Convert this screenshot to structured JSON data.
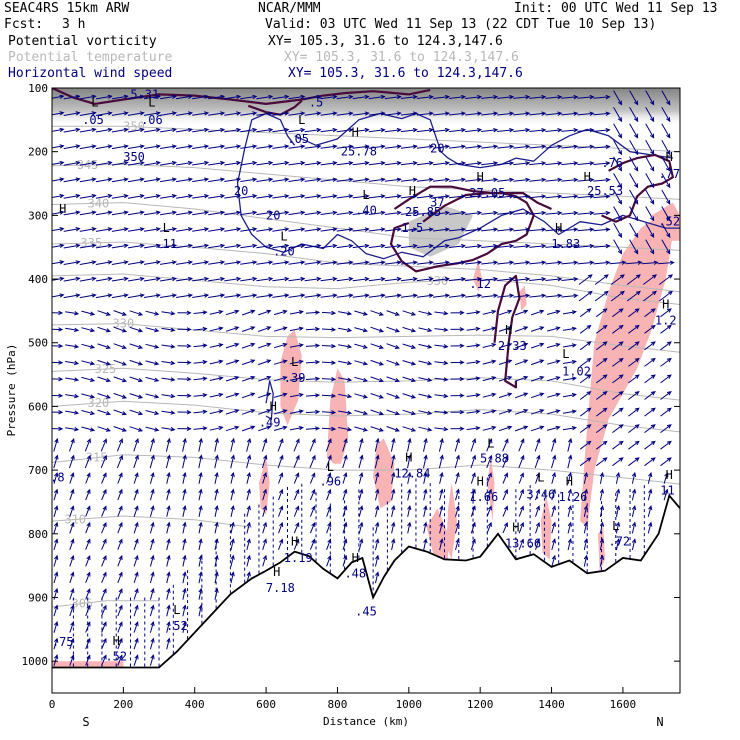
{
  "header": {
    "model": "SEAC4RS 15km ARW",
    "center": "NCAR/MMM",
    "init": "Init: 00 UTC Wed 11 Sep 13",
    "fcst_label": "Fcst:",
    "fcst_value": "3 h",
    "valid": "Valid: 03 UTC Wed 11 Sep 13 (22 CDT Tue 10 Sep 13)"
  },
  "legend": [
    {
      "field": "Potential vorticity",
      "xy": "XY= 105.3, 31.6 to 124.3,147.6",
      "color": "#000000"
    },
    {
      "field": "Potential temperature",
      "xy": "XY= 105.3, 31.6 to 124.3,147.6",
      "color": "#b8b8b8"
    },
    {
      "field": "Horizontal wind speed",
      "xy": "XY= 105.3, 31.6 to 124.3,147.6",
      "color": "#000080"
    }
  ],
  "colors": {
    "wind_arrow": "#000080",
    "pv_contour": "#1e1e8c",
    "theta_contour": "#b8b8b8",
    "pv_thick": "#4a0a3c",
    "pink_fill": "#f8b4b4",
    "strat_grey": "#9a9a9a",
    "terrain": "#000000"
  },
  "chart_data": {
    "type": "cross-section",
    "xlabel": "Distance (km)",
    "ylabel": "Pressure (hPa)",
    "xlim": [
      0,
      1760
    ],
    "ylim": [
      1050,
      100
    ],
    "x_ticks": [
      0,
      200,
      400,
      600,
      800,
      1000,
      1200,
      1400,
      1600
    ],
    "y_ticks": [
      100,
      200,
      300,
      400,
      500,
      600,
      700,
      800,
      900,
      1000
    ],
    "x_end_labels": {
      "left": "S",
      "right": "N"
    },
    "terrain": [
      [
        0,
        1010
      ],
      [
        100,
        1010
      ],
      [
        200,
        1010
      ],
      [
        300,
        1010
      ],
      [
        350,
        985
      ],
      [
        400,
        955
      ],
      [
        450,
        925
      ],
      [
        500,
        895
      ],
      [
        560,
        870
      ],
      [
        600,
        858
      ],
      [
        640,
        845
      ],
      [
        680,
        828
      ],
      [
        720,
        835
      ],
      [
        760,
        855
      ],
      [
        800,
        870
      ],
      [
        840,
        845
      ],
      [
        870,
        838
      ],
      [
        900,
        900
      ],
      [
        930,
        868
      ],
      [
        960,
        842
      ],
      [
        1000,
        820
      ],
      [
        1050,
        828
      ],
      [
        1100,
        840
      ],
      [
        1160,
        842
      ],
      [
        1200,
        836
      ],
      [
        1250,
        800
      ],
      [
        1300,
        840
      ],
      [
        1350,
        832
      ],
      [
        1400,
        852
      ],
      [
        1450,
        842
      ],
      [
        1500,
        862
      ],
      [
        1550,
        858
      ],
      [
        1600,
        838
      ],
      [
        1650,
        842
      ],
      [
        1700,
        800
      ],
      [
        1730,
        740
      ],
      [
        1760,
        760
      ]
    ],
    "theta_isentropes": [
      {
        "label": "350",
        "x_label": 230,
        "p": [
          [
            0,
            160
          ],
          [
            200,
            160
          ],
          [
            400,
            165
          ],
          [
            600,
            170
          ],
          [
            800,
            175
          ],
          [
            1000,
            180
          ],
          [
            1200,
            185
          ],
          [
            1400,
            190
          ],
          [
            1600,
            195
          ],
          [
            1760,
            200
          ]
        ]
      },
      {
        "label": "345",
        "x_label": 100,
        "p": [
          [
            0,
            222
          ],
          [
            200,
            220
          ],
          [
            400,
            225
          ],
          [
            600,
            235
          ],
          [
            800,
            245
          ],
          [
            1000,
            255
          ],
          [
            1200,
            260
          ],
          [
            1400,
            265
          ],
          [
            1600,
            270
          ],
          [
            1760,
            275
          ]
        ]
      },
      {
        "label": "340",
        "x_label": 130,
        "p": [
          [
            0,
            283
          ],
          [
            200,
            280
          ],
          [
            400,
            290
          ],
          [
            600,
            305
          ],
          [
            800,
            320
          ],
          [
            1000,
            335
          ],
          [
            1200,
            340
          ],
          [
            1400,
            345
          ],
          [
            1600,
            350
          ],
          [
            1760,
            355
          ]
        ]
      },
      {
        "label": "335",
        "x_label": 110,
        "p": [
          [
            0,
            345
          ],
          [
            200,
            342
          ],
          [
            400,
            350
          ],
          [
            600,
            360
          ],
          [
            800,
            375
          ],
          [
            1000,
            380
          ],
          [
            1200,
            385
          ],
          [
            1400,
            395
          ],
          [
            1600,
            410
          ],
          [
            1760,
            420
          ]
        ]
      },
      {
        "label": "330",
        "x_label": 1080,
        "p": [
          [
            0,
            395
          ],
          [
            200,
            392
          ],
          [
            400,
            402
          ],
          [
            600,
            412
          ],
          [
            800,
            415
          ],
          [
            1000,
            405
          ],
          [
            1200,
            400
          ],
          [
            1400,
            410
          ],
          [
            1600,
            430
          ],
          [
            1760,
            440
          ]
        ]
      },
      {
        "label": "330",
        "x_label": 200,
        "p": [
          [
            0,
            472
          ],
          [
            200,
            470
          ],
          [
            400,
            480
          ],
          [
            600,
            490
          ],
          [
            800,
            492
          ],
          [
            1000,
            490
          ],
          [
            1200,
            488
          ],
          [
            1400,
            490
          ],
          [
            1600,
            505
          ],
          [
            1760,
            515
          ]
        ]
      },
      {
        "label": "325",
        "x_label": 150,
        "p": [
          [
            0,
            545
          ],
          [
            200,
            540
          ],
          [
            400,
            548
          ],
          [
            600,
            558
          ],
          [
            800,
            562
          ],
          [
            1000,
            560
          ],
          [
            1200,
            555
          ],
          [
            1400,
            560
          ],
          [
            1600,
            580
          ],
          [
            1760,
            590
          ]
        ]
      },
      {
        "label": "320",
        "x_label": 130,
        "p": [
          [
            0,
            600
          ],
          [
            200,
            592
          ],
          [
            400,
            598
          ],
          [
            600,
            610
          ],
          [
            800,
            615
          ],
          [
            1000,
            612
          ],
          [
            1200,
            605
          ],
          [
            1400,
            612
          ],
          [
            1600,
            630
          ],
          [
            1760,
            640
          ]
        ]
      },
      {
        "label": "315",
        "x_label": 125,
        "p": [
          [
            0,
            688
          ],
          [
            200,
            676
          ],
          [
            400,
            680
          ],
          [
            600,
            692
          ],
          [
            800,
            700
          ],
          [
            1000,
            700
          ],
          [
            1200,
            692
          ],
          [
            1400,
            700
          ],
          [
            1600,
            712
          ],
          [
            1760,
            722
          ]
        ]
      },
      {
        "label": "310",
        "x_label": 65,
        "p": [
          [
            0,
            780
          ],
          [
            200,
            772
          ],
          [
            400,
            778
          ],
          [
            560,
            790
          ]
        ]
      },
      {
        "label": "305",
        "x_label": 85,
        "p": [
          [
            0,
            915
          ],
          [
            150,
            905
          ],
          [
            300,
            905
          ]
        ]
      }
    ],
    "pv_labels": [
      {
        "text": "5.31",
        "x": 260,
        "p": 110
      },
      {
        "text": "L",
        "x": 120,
        "p": 123
      },
      {
        "text": ".05",
        "x": 115,
        "p": 150
      },
      {
        "text": "L",
        "x": 280,
        "p": 123
      },
      {
        "text": ".06",
        "x": 280,
        "p": 150
      },
      {
        "text": ".5",
        "x": 740,
        "p": 123
      },
      {
        "text": "L",
        "x": 700,
        "p": 150
      },
      {
        "text": ".05",
        "x": 690,
        "p": 180
      },
      {
        "text": "H",
        "x": 850,
        "p": 170
      },
      {
        "text": "25.78",
        "x": 860,
        "p": 200
      },
      {
        "text": "20",
        "x": 1080,
        "p": 195
      },
      {
        "text": "20",
        "x": 530,
        "p": 262
      },
      {
        "text": "350",
        "x": 230,
        "p": 208
      },
      {
        "text": "L",
        "x": 880,
        "p": 268
      },
      {
        "text": ".40",
        "x": 880,
        "p": 292
      },
      {
        "text": "20",
        "x": 620,
        "p": 300
      },
      {
        "text": "L",
        "x": 320,
        "p": 320
      },
      {
        "text": ".11",
        "x": 320,
        "p": 345
      },
      {
        "text": "L",
        "x": 650,
        "p": 333
      },
      {
        "text": ".20",
        "x": 650,
        "p": 357
      },
      {
        "text": "H",
        "x": 1010,
        "p": 262
      },
      {
        "text": "37",
        "x": 1080,
        "p": 280
      },
      {
        "text": "25.85",
        "x": 1040,
        "p": 295
      },
      {
        "text": "1.5",
        "x": 1010,
        "p": 320
      },
      {
        "text": "H",
        "x": 1200,
        "p": 240
      },
      {
        "text": "27.05",
        "x": 1220,
        "p": 265
      },
      {
        "text": "H",
        "x": 1500,
        "p": 240
      },
      {
        "text": "25.53",
        "x": 1550,
        "p": 262
      },
      {
        "text": "H",
        "x": 1420,
        "p": 320
      },
      {
        "text": "1.83",
        "x": 1440,
        "p": 345
      },
      {
        "text": "H",
        "x": 1280,
        "p": 480
      },
      {
        "text": "2.33",
        "x": 1290,
        "p": 505
      },
      {
        "text": ".12",
        "x": 1200,
        "p": 408
      },
      {
        "text": "H",
        "x": 1720,
        "p": 440
      },
      {
        "text": "1.2",
        "x": 1720,
        "p": 465
      },
      {
        "text": "L",
        "x": 1440,
        "p": 518
      },
      {
        "text": "1.02",
        "x": 1470,
        "p": 545
      },
      {
        "text": "L",
        "x": 680,
        "p": 530
      },
      {
        "text": ".39",
        "x": 680,
        "p": 555
      },
      {
        "text": "H",
        "x": 620,
        "p": 600
      },
      {
        "text": ".49",
        "x": 610,
        "p": 625
      },
      {
        "text": "L",
        "x": 1230,
        "p": 658
      },
      {
        "text": "5.88",
        "x": 1240,
        "p": 682
      },
      {
        "text": "H",
        "x": 1000,
        "p": 680
      },
      {
        "text": "12.84",
        "x": 1010,
        "p": 705
      },
      {
        "text": "L",
        "x": 780,
        "p": 695
      },
      {
        "text": ".96",
        "x": 780,
        "p": 718
      },
      {
        "text": "H",
        "x": 1200,
        "p": 718
      },
      {
        "text": "1.66",
        "x": 1210,
        "p": 742
      },
      {
        "text": "L",
        "x": 1370,
        "p": 712
      },
      {
        "text": "3.46",
        "x": 1370,
        "p": 738
      },
      {
        "text": "H",
        "x": 1450,
        "p": 718
      },
      {
        "text": "1.26",
        "x": 1460,
        "p": 742
      },
      {
        "text": "H",
        "x": 1730,
        "p": 708
      },
      {
        "text": "11",
        "x": 1725,
        "p": 732
      },
      {
        "text": ".8",
        "x": 15,
        "p": 712
      },
      {
        "text": "L",
        "x": 1580,
        "p": 788
      },
      {
        "text": ".72",
        "x": 1590,
        "p": 812
      },
      {
        "text": "H",
        "x": 1300,
        "p": 790
      },
      {
        "text": "13.66",
        "x": 1320,
        "p": 815
      },
      {
        "text": "H",
        "x": 680,
        "p": 812
      },
      {
        "text": "1.19",
        "x": 690,
        "p": 838
      },
      {
        "text": "H",
        "x": 850,
        "p": 838
      },
      {
        "text": ".48",
        "x": 850,
        "p": 862
      },
      {
        "text": "H",
        "x": 630,
        "p": 860
      },
      {
        "text": "7.18",
        "x": 640,
        "p": 885
      },
      {
        "text": ".45",
        "x": 880,
        "p": 922
      },
      {
        "text": "L",
        "x": 350,
        "p": 920
      },
      {
        "text": ".52",
        "x": 350,
        "p": 945
      },
      {
        "text": "H",
        "x": 180,
        "p": 968
      },
      {
        "text": ".52",
        "x": 180,
        "p": 993
      },
      {
        "text": ".75",
        "x": 30,
        "p": 970
      },
      {
        "text": "H",
        "x": 30,
        "p": 290
      },
      {
        "text": "H",
        "x": 1730,
        "p": 208
      },
      {
        "text": ".77",
        "x": 1730,
        "p": 235
      },
      {
        "text": ".76",
        "x": 1570,
        "p": 218
      },
      {
        "text": ".52",
        "x": 1730,
        "p": 310
      }
    ]
  }
}
